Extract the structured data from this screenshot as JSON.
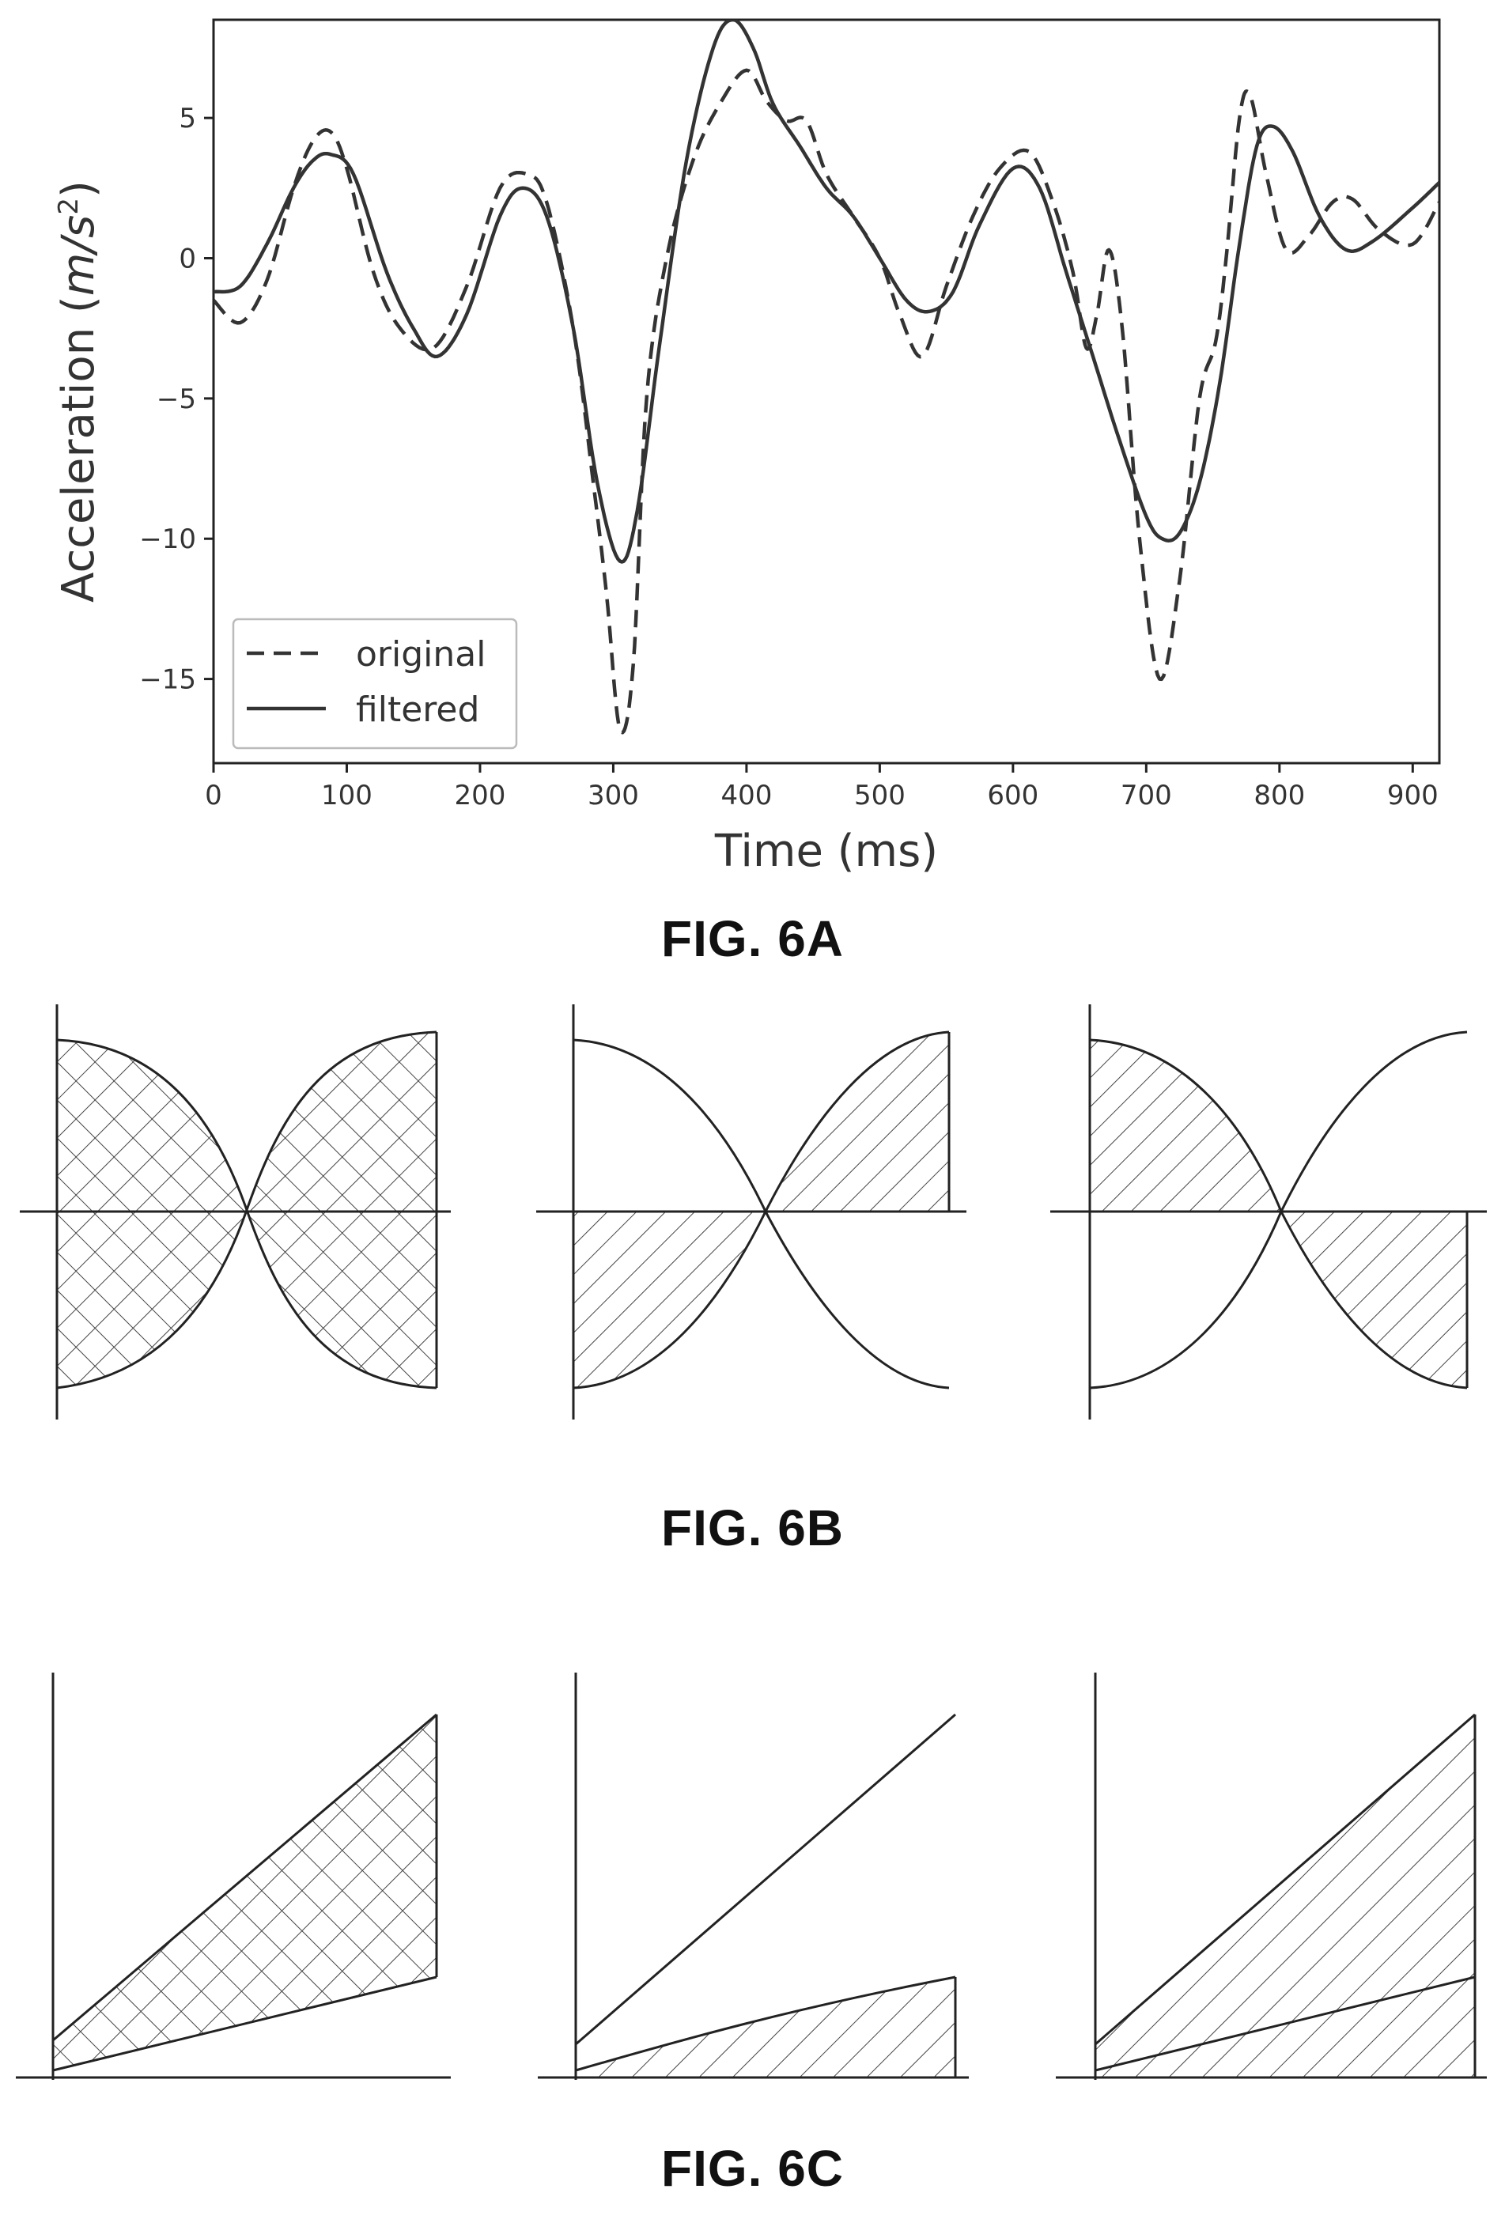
{
  "fig6a": {
    "caption": "FIG. 6A",
    "legend": {
      "placement": "lower-left",
      "entries": [
        {
          "label": "original",
          "style": "dashed"
        },
        {
          "label": "filtered",
          "style": "solid"
        }
      ]
    },
    "chart_data": {
      "type": "line",
      "xlabel": "Time (ms)",
      "ylabel_main": "Acceleration (",
      "ylabel_unit_m": "m",
      "ylabel_unit_s": "/s",
      "ylabel_unit_exp": "2",
      "ylabel_close": ")",
      "xlim": [
        0,
        920
      ],
      "ylim": [
        -18,
        8.5
      ],
      "xticks": [
        0,
        100,
        200,
        300,
        400,
        500,
        600,
        700,
        800,
        900
      ],
      "yticks": [
        5,
        0,
        -5,
        -10,
        -15
      ],
      "xtick_labels": [
        "0",
        "100",
        "200",
        "300",
        "400",
        "500",
        "600",
        "700",
        "800",
        "900"
      ],
      "ytick_labels": [
        "5",
        "0",
        "−5",
        "−10",
        "−15"
      ],
      "grid": false,
      "series": [
        {
          "name": "original",
          "style": "dashed",
          "x": [
            0,
            20,
            40,
            60,
            75,
            88,
            100,
            120,
            140,
            165,
            190,
            215,
            235,
            250,
            270,
            285,
            295,
            305,
            315,
            325,
            340,
            360,
            380,
            400,
            415,
            430,
            445,
            460,
            480,
            500,
            515,
            532,
            550,
            570,
            590,
            612,
            630,
            645,
            655,
            663,
            672,
            682,
            695,
            710,
            725,
            740,
            752,
            760,
            770,
            778,
            790,
            805,
            822,
            840,
            855,
            875,
            900,
            920
          ],
          "y": [
            -1.5,
            -2.3,
            -0.8,
            2.5,
            4.2,
            4.5,
            3.2,
            -0.5,
            -2.5,
            -3.2,
            -1.0,
            2.5,
            3.0,
            2.0,
            -2.5,
            -8.0,
            -12.0,
            -16.8,
            -14.5,
            -5.0,
            0.0,
            3.5,
            5.5,
            6.7,
            5.6,
            4.9,
            4.9,
            3.0,
            1.5,
            0.0,
            -2.0,
            -3.5,
            -1.0,
            1.5,
            3.2,
            3.8,
            2.0,
            -0.5,
            -3.2,
            -2.0,
            0.3,
            -2.5,
            -10.0,
            -15.0,
            -11.5,
            -5.0,
            -3.0,
            0.0,
            5.0,
            5.8,
            3.0,
            0.3,
            0.8,
            2.0,
            2.1,
            1.0,
            0.5,
            2.0
          ]
        },
        {
          "name": "filtered",
          "style": "solid",
          "x": [
            0,
            20,
            40,
            60,
            75,
            88,
            105,
            130,
            150,
            168,
            190,
            215,
            232,
            250,
            270,
            288,
            305,
            318,
            335,
            355,
            375,
            390,
            405,
            420,
            440,
            460,
            480,
            500,
            520,
            537,
            555,
            575,
            600,
            620,
            640,
            660,
            680,
            700,
            712,
            725,
            740,
            755,
            770,
            783,
            795,
            810,
            830,
            850,
            870,
            900,
            920
          ],
          "y": [
            -1.2,
            -1.0,
            0.5,
            2.5,
            3.5,
            3.7,
            3.0,
            -0.5,
            -2.5,
            -3.5,
            -2.0,
            1.5,
            2.5,
            1.5,
            -2.5,
            -8.0,
            -10.8,
            -9.0,
            -3.0,
            3.5,
            7.5,
            8.5,
            7.5,
            5.5,
            4.0,
            2.5,
            1.5,
            0.0,
            -1.5,
            -1.9,
            -1.2,
            1.2,
            3.2,
            2.5,
            -0.5,
            -3.5,
            -6.5,
            -9.2,
            -10.0,
            -9.8,
            -8.0,
            -4.5,
            0.5,
            4.0,
            4.7,
            3.8,
            1.5,
            0.3,
            0.6,
            1.8,
            2.7
          ]
        }
      ]
    }
  },
  "fig6b": {
    "caption": "FIG. 6B"
  },
  "fig6c": {
    "caption": "FIG. 6C"
  }
}
